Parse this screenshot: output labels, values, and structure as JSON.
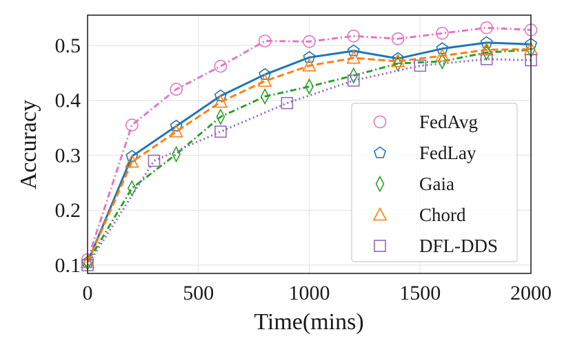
{
  "chart_data": {
    "type": "line",
    "title": "",
    "xlabel": "Time(mins)",
    "ylabel": "Accuracy",
    "xlim": [
      0,
      2000
    ],
    "ylim": [
      0.085,
      0.555
    ],
    "grid": true,
    "legend_position": "center-right",
    "xticks": [
      0,
      500,
      1000,
      1500,
      2000
    ],
    "xtick_labels": [
      "0",
      "500",
      "1000",
      "1500",
      "2000"
    ],
    "yticks": [
      0.1,
      0.2,
      0.3,
      0.4,
      0.5
    ],
    "ytick_labels": [
      "0.1",
      "0.2",
      "0.3",
      "0.4",
      "0.5"
    ],
    "series": [
      {
        "name": "FedAvg",
        "color": "#e377c2",
        "marker": "circle",
        "dash": "dashdot",
        "x": [
          0,
          200,
          400,
          600,
          800,
          1000,
          1200,
          1400,
          1600,
          1800,
          2000
        ],
        "y": [
          0.11,
          0.355,
          0.42,
          0.462,
          0.508,
          0.507,
          0.517,
          0.512,
          0.522,
          0.532,
          0.528
        ]
      },
      {
        "name": "FedLay",
        "color": "#1f77b4",
        "marker": "pentagon",
        "dash": "solid",
        "x": [
          0,
          200,
          400,
          600,
          800,
          1000,
          1200,
          1400,
          1600,
          1800,
          2000
        ],
        "y": [
          0.105,
          0.298,
          0.353,
          0.408,
          0.447,
          0.478,
          0.49,
          0.476,
          0.494,
          0.505,
          0.502
        ]
      },
      {
        "name": "Gaia",
        "color": "#2ca02c",
        "marker": "diamond",
        "dash": "dashdot",
        "x": [
          0,
          200,
          400,
          600,
          800,
          1000,
          1200,
          1400,
          1600,
          1800,
          2000
        ],
        "y": [
          0.105,
          0.24,
          0.302,
          0.37,
          0.407,
          0.425,
          0.445,
          0.467,
          0.471,
          0.487,
          0.492
        ]
      },
      {
        "name": "Chord",
        "color": "#ff7f0e",
        "marker": "triangle",
        "dash": "dashed",
        "x": [
          0,
          200,
          400,
          600,
          800,
          1000,
          1200,
          1400,
          1600,
          1800,
          2000
        ],
        "y": [
          0.105,
          0.288,
          0.343,
          0.397,
          0.435,
          0.463,
          0.477,
          0.471,
          0.481,
          0.492,
          0.493
        ]
      },
      {
        "name": "DFL-DDS",
        "color": "#9467bd",
        "marker": "square",
        "dash": "dotted",
        "x": [
          0,
          300,
          600,
          900,
          1200,
          1500,
          1800,
          2000
        ],
        "y": [
          0.1,
          0.29,
          0.343,
          0.395,
          0.436,
          0.463,
          0.475,
          0.473
        ]
      }
    ]
  }
}
